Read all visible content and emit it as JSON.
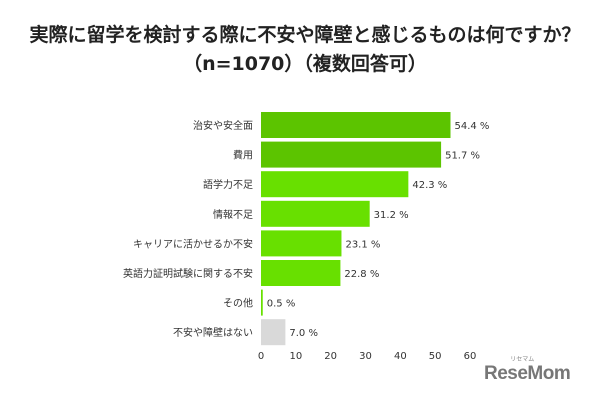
{
  "chart_data": {
    "type": "bar",
    "orientation": "horizontal",
    "title": "実際に留学を検討する際に不安や障壁と感じるものは何ですか？",
    "subtitle": "（n=1070）（複数回答可）",
    "categories": [
      "治安や安全面",
      "費用",
      "語学力不足",
      "情報不足",
      "キャリアに活かせるか不安",
      "英語力証明試験に関する不安",
      "その他",
      "不安や障壁はない"
    ],
    "values": [
      54.4,
      51.7,
      42.3,
      31.2,
      23.1,
      22.8,
      0.5,
      7.0
    ],
    "value_labels": [
      "54.4 %",
      "51.7 %",
      "42.3 %",
      "31.2 %",
      "23.1 %",
      "22.8 %",
      "0.5 %",
      "7.0 %"
    ],
    "colors": [
      "#5cc400",
      "#5cc400",
      "#68e000",
      "#68e000",
      "#68e000",
      "#68e000",
      "#68e000",
      "#d9d9d9"
    ],
    "xlim": [
      0,
      60
    ],
    "xticks": [
      0,
      10,
      20,
      30,
      40,
      50,
      60
    ],
    "grid": false
  },
  "logo": {
    "text": "ReseMom",
    "kana": "リセマム"
  }
}
